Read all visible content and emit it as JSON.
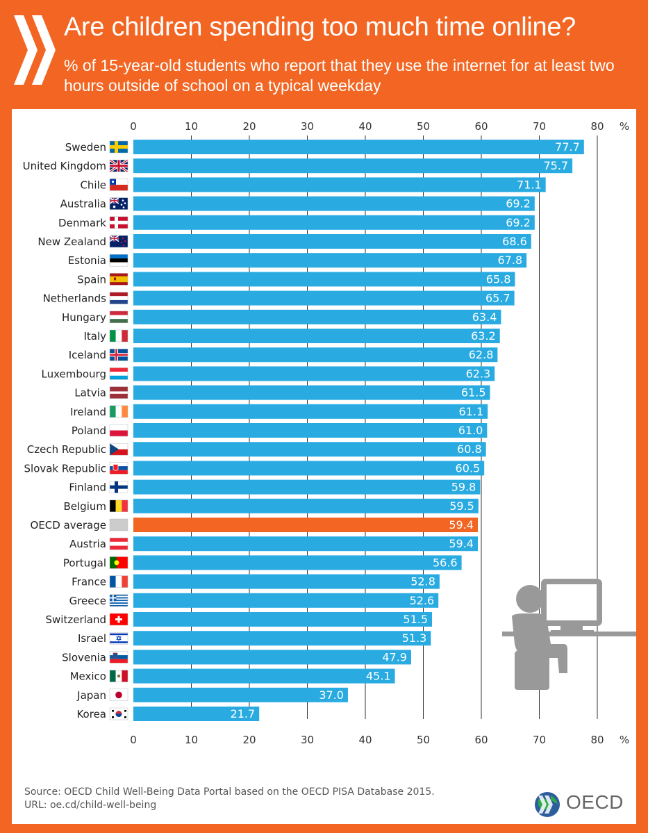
{
  "header": {
    "title": "Are children spending too much time online?",
    "subtitle": "% of 15-year-old students who report that they use the internet for at least two hours outside of school on a typical weekday"
  },
  "footer": {
    "source_line1": "Source: OECD Child Well-Being Data Portal based on the OECD PISA Database 2015.",
    "source_line2": "URL: oe.cd/child-well-being",
    "logo_text": "OECD"
  },
  "colors": {
    "background": "#f26522",
    "bar": "#29abe2",
    "highlight_bar": "#f26522",
    "grid": "#333333",
    "illustration": "#999999"
  },
  "chart_data": {
    "type": "bar",
    "orientation": "horizontal",
    "categories": [
      "Sweden",
      "United Kingdom",
      "Chile",
      "Australia",
      "Denmark",
      "New Zealand",
      "Estonia",
      "Spain",
      "Netherlands",
      "Hungary",
      "Italy",
      "Iceland",
      "Luxembourg",
      "Latvia",
      "Ireland",
      "Poland",
      "Czech Republic",
      "Slovak Republic",
      "Finland",
      "Belgium",
      "OECD average",
      "Austria",
      "Portugal",
      "France",
      "Greece",
      "Switzerland",
      "Israel",
      "Slovenia",
      "Mexico",
      "Japan",
      "Korea"
    ],
    "values": [
      77.7,
      75.7,
      71.1,
      69.2,
      69.2,
      68.6,
      67.8,
      65.8,
      65.7,
      63.4,
      63.2,
      62.8,
      62.3,
      61.5,
      61.1,
      61.0,
      60.8,
      60.5,
      59.8,
      59.5,
      59.4,
      59.4,
      56.6,
      52.8,
      52.6,
      51.5,
      51.3,
      47.9,
      45.1,
      37.0,
      21.7
    ],
    "value_labels": [
      "77.7",
      "75.7",
      "71.1",
      "69.2",
      "69.2",
      "68.6",
      "67.8",
      "65.8",
      "65.7",
      "63.4",
      "63.2",
      "62.8",
      "62.3",
      "61.5",
      "61.1",
      "61.0",
      "60.8",
      "60.5",
      "59.8",
      "59.5",
      "59.4",
      "59.4",
      "56.6",
      "52.8",
      "52.6",
      "51.5",
      "51.3",
      "47.9",
      "45.1",
      "37.0",
      "21.7"
    ],
    "highlight": "OECD average",
    "xlim": [
      0,
      80
    ],
    "ticks": [
      "0",
      "10",
      "20",
      "30",
      "40",
      "50",
      "60",
      "70",
      "80"
    ],
    "unit": "%",
    "grid": true,
    "axis_position": "top-and-bottom"
  },
  "flags": [
    "sweden-flag-icon",
    "united-kingdom-flag-icon",
    "chile-flag-icon",
    "australia-flag-icon",
    "denmark-flag-icon",
    "new-zealand-flag-icon",
    "estonia-flag-icon",
    "spain-flag-icon",
    "netherlands-flag-icon",
    "hungary-flag-icon",
    "italy-flag-icon",
    "iceland-flag-icon",
    "luxembourg-flag-icon",
    "latvia-flag-icon",
    "ireland-flag-icon",
    "poland-flag-icon",
    "czech-republic-flag-icon",
    "slovak-republic-flag-icon",
    "finland-flag-icon",
    "belgium-flag-icon",
    "oecd-globe-icon",
    "austria-flag-icon",
    "portugal-flag-icon",
    "france-flag-icon",
    "greece-flag-icon",
    "switzerland-flag-icon",
    "israel-flag-icon",
    "slovenia-flag-icon",
    "mexico-flag-icon",
    "japan-flag-icon",
    "korea-flag-icon"
  ]
}
